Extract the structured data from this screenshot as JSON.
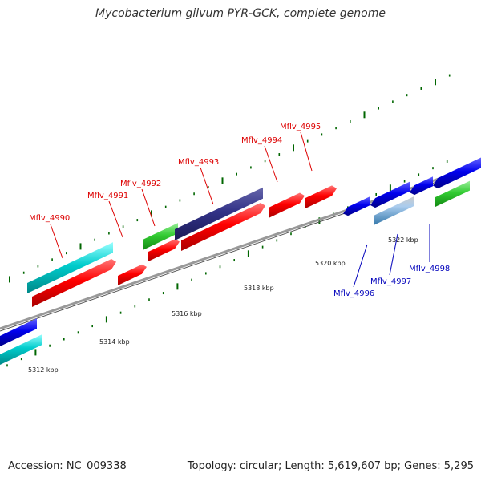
{
  "title": "Mycobacterium gilvum PYR-GCK, complete genome",
  "footer": {
    "accession": "Accession: NC_009338",
    "topology": "Topology: circular; Length: 5,619,607 bp; Genes: 5,295"
  },
  "colors": {
    "forward_cds": "#ff0000",
    "reverse_cds": "#0000ee",
    "cyan_feature": "#00cccc",
    "green_feature": "#33cc33",
    "purple_feature": "#333388",
    "rna_feature": "#66aadd",
    "tick": "#006600",
    "backbone": "#888888",
    "forward_label": "#dd0000",
    "reverse_label": "#0000bb"
  },
  "tick_labels": [
    "5312 kbp",
    "5314 kbp",
    "5316 kbp",
    "5318 kbp",
    "5320 kbp",
    "5322 kbp"
  ],
  "gene_labels": {
    "forward": [
      "Mflv_4990",
      "Mflv_4991",
      "Mflv_4992",
      "Mflv_4993",
      "Mflv_4994",
      "Mflv_4995"
    ],
    "reverse": [
      "Mflv_4996",
      "Mflv_4997",
      "Mflv_4998"
    ]
  }
}
